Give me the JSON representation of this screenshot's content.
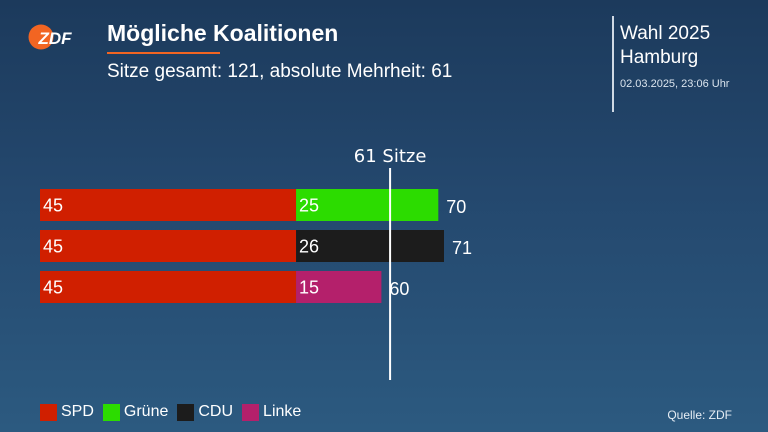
{
  "header": {
    "logo_text": "ZDF",
    "title": "Mögliche Koalitionen",
    "subtitle": "Sitze gesamt: 121, absolute Mehrheit: 61"
  },
  "election": {
    "name": "Wahl 2025",
    "region": "Hamburg",
    "timestamp": "02.03.2025, 23:06 Uhr"
  },
  "footer": {
    "source": "Quelle: ZDF"
  },
  "colors": {
    "accent": "#f26522",
    "SPD": "#d01f00",
    "Grüne": "#2cdc00",
    "CDU": "#1c1c1c",
    "Linke": "#b4206b"
  },
  "chart_data": {
    "type": "bar",
    "orientation": "horizontal",
    "stacked": true,
    "majority_line": {
      "value": 61,
      "label": "61 Sitze"
    },
    "xlim": [
      0,
      70
    ],
    "legend": [
      "SPD",
      "Grüne",
      "CDU",
      "Linke"
    ],
    "legend_position": "bottom-left",
    "rows": [
      {
        "parties": [
          "SPD",
          "Grüne"
        ],
        "values": [
          45,
          25
        ],
        "total": 70
      },
      {
        "parties": [
          "SPD",
          "CDU"
        ],
        "values": [
          45,
          26
        ],
        "total": 71
      },
      {
        "parties": [
          "SPD",
          "Linke"
        ],
        "values": [
          45,
          15
        ],
        "total": 60
      }
    ]
  }
}
